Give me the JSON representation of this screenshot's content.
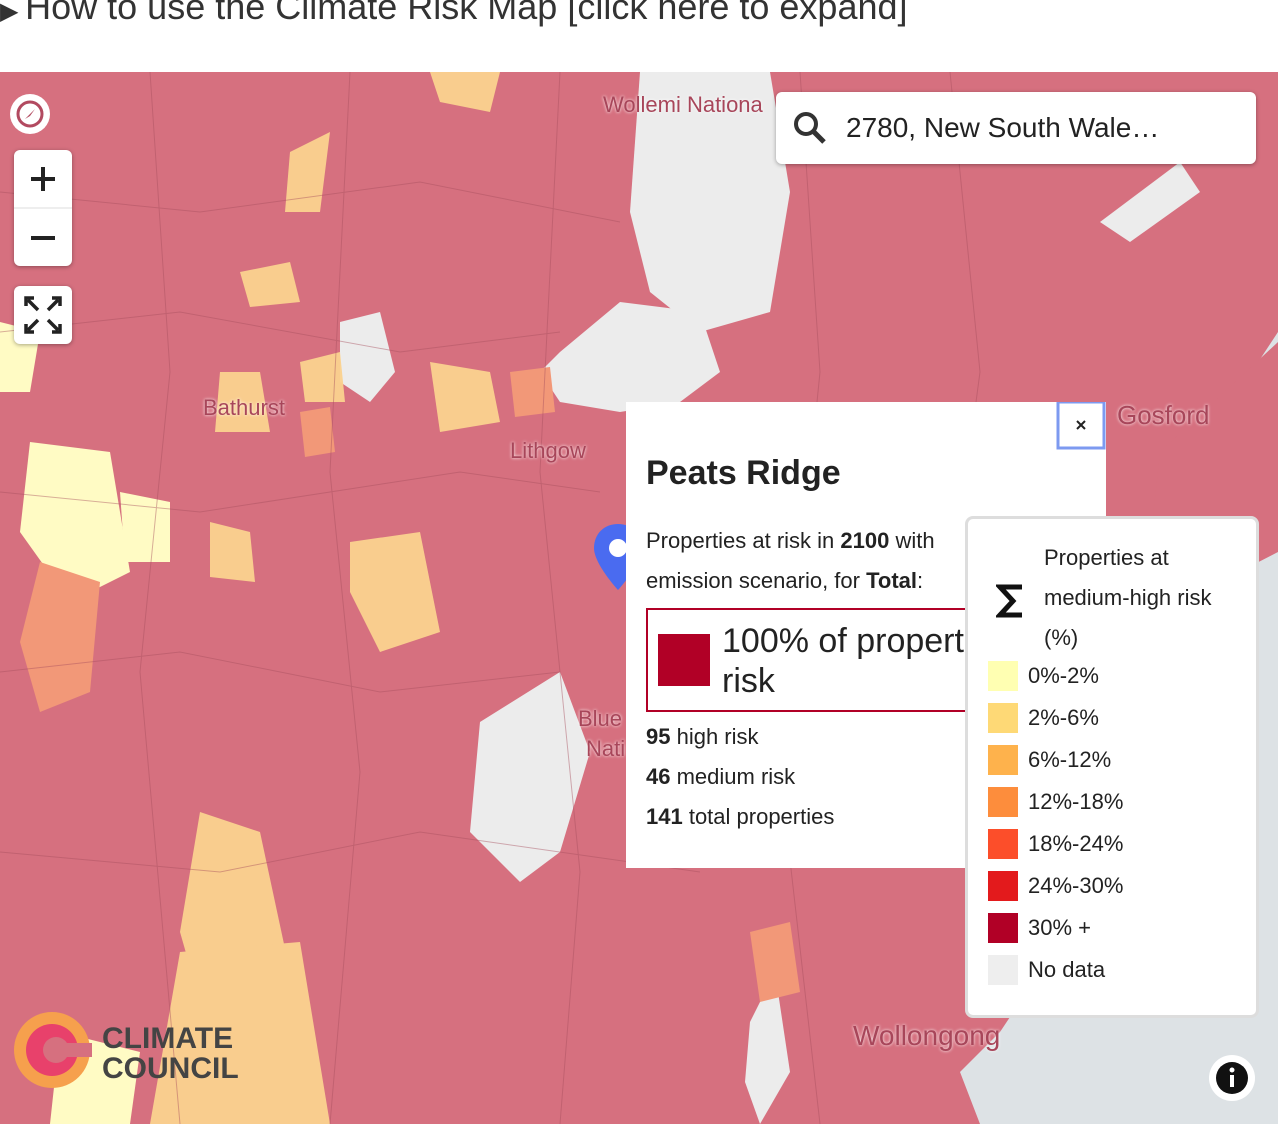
{
  "header": {
    "title": "How to use the Climate Risk Map [click here to expand]"
  },
  "search": {
    "query": "2780, New South Wale…"
  },
  "map_labels": [
    "Wollemi Nationa",
    "Bathurst",
    "Lithgow",
    "Gosford",
    "Blue",
    "Nati",
    "Wollongong"
  ],
  "popup": {
    "title": "Peats Ridge",
    "line1": [
      "Properties at risk in ",
      "2100",
      " with"
    ],
    "line2": [
      "emission scenario, for ",
      "Total",
      ":"
    ],
    "highlight": [
      "100% of propert",
      "risk"
    ],
    "stats": [
      {
        "count": 95,
        "label": " high risk"
      },
      {
        "count": 46,
        "label": " medium risk"
      },
      {
        "count": 141,
        "label": " total properties"
      }
    ]
  },
  "legend": {
    "title": [
      "Properties at",
      "medium-high risk",
      "(%)"
    ],
    "items": [
      {
        "label": "0%-2%",
        "color": "#ffffb2"
      },
      {
        "label": "2%-6%",
        "color": "#fed976"
      },
      {
        "label": "6%-12%",
        "color": "#feb24c"
      },
      {
        "label": "12%-18%",
        "color": "#fd8d3c"
      },
      {
        "label": "18%-24%",
        "color": "#fc4e2a"
      },
      {
        "label": "24%-30%",
        "color": "#e31a1c"
      },
      {
        "label": "30% +",
        "color": "#b10026"
      },
      {
        "label": "No data",
        "color": "#eeeeee"
      }
    ]
  },
  "logo": [
    "CLIMATE",
    "COUNCIL"
  ]
}
